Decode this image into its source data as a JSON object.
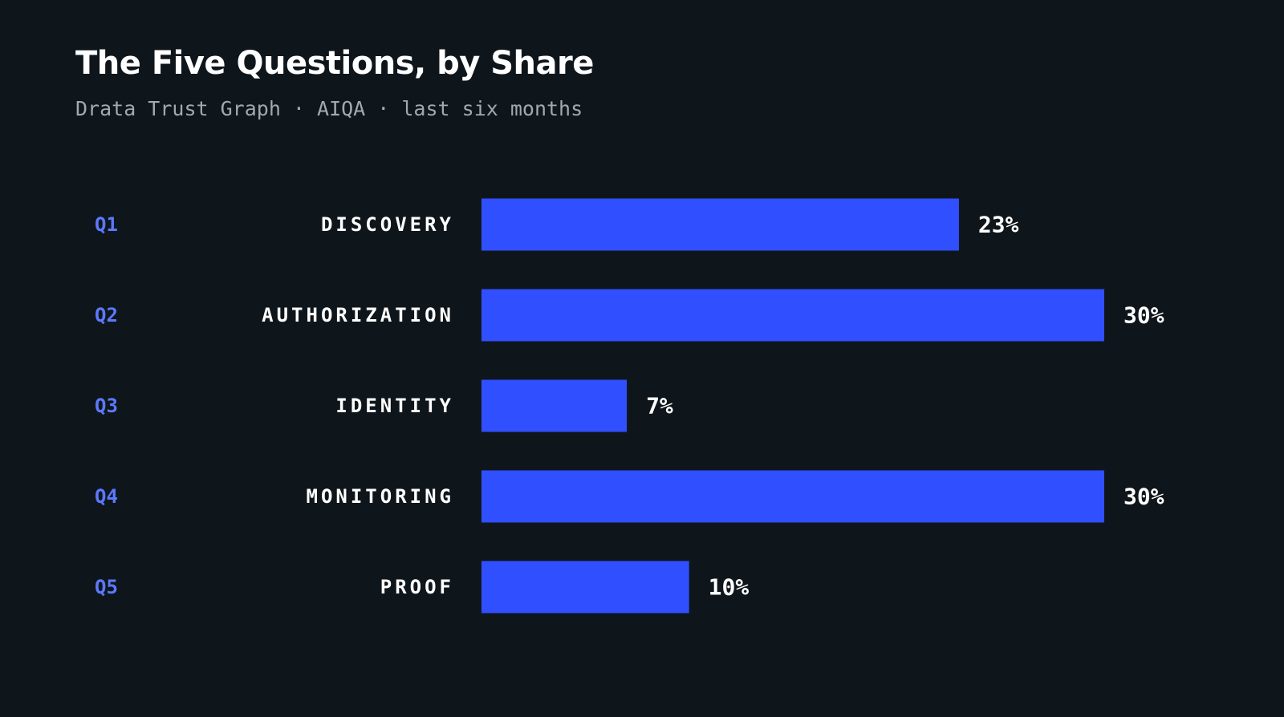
{
  "header": {
    "title": "The Five Questions, by Share",
    "subtitle": "Drata Trust Graph · AIQA · last six months"
  },
  "colors": {
    "background": "#0f161b",
    "bar": "#304ffe",
    "question_id": "#5b79ff",
    "label": "#ffffff",
    "subtitle": "#a3a8ad"
  },
  "chart_data": {
    "type": "bar",
    "orientation": "horizontal",
    "title": "The Five Questions, by Share",
    "subtitle": "Drata Trust Graph · AIQA · last six months",
    "question_ids": [
      "Q1",
      "Q2",
      "Q3",
      "Q4",
      "Q5"
    ],
    "categories": [
      "DISCOVERY",
      "AUTHORIZATION",
      "IDENTITY",
      "MONITORING",
      "PROOF"
    ],
    "values": [
      23,
      30,
      7,
      30,
      10
    ],
    "value_labels": [
      "23%",
      "30%",
      "7%",
      "30%",
      "10%"
    ],
    "unit": "%",
    "xlim": [
      0,
      30
    ],
    "grid": false,
    "legend": "none"
  }
}
